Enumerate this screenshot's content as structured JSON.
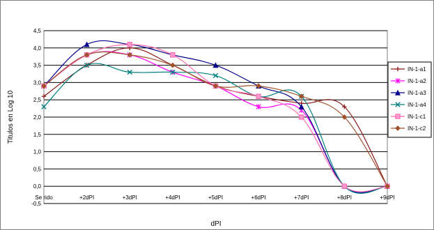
{
  "chart_data": {
    "type": "line",
    "xlabel": "dPI",
    "ylabel": "Titulos en Log 10",
    "categories": [
      "Se rido",
      "+2dPI",
      "+3dPI",
      "+4dPI",
      "+5dPI",
      "+6dPI",
      "+7dPI",
      "+8dPI",
      "+9dPI"
    ],
    "ylim": [
      -0.5,
      4.5
    ],
    "yticks": [
      "4,5",
      "4,0",
      "3,5",
      "3,0",
      "2,5",
      "2,0",
      "1,5",
      "1,0",
      "0,5",
      "0,0",
      "-0,5"
    ],
    "ytick_values": [
      4.5,
      4.0,
      3.5,
      3.0,
      2.5,
      2.0,
      1.5,
      1.0,
      0.5,
      0.0,
      -0.5
    ],
    "grid": true,
    "legend_position": "right",
    "series": [
      {
        "name": "IN-1-a1",
        "color": "#8b1a1a",
        "marker": "plus",
        "values": [
          2.6,
          3.5,
          4.0,
          3.5,
          2.9,
          2.6,
          2.4,
          2.3,
          0.0
        ]
      },
      {
        "name": "IN-1-a2",
        "color": "#ff00ff",
        "marker": "asterisk",
        "values": [
          2.9,
          3.8,
          3.8,
          3.3,
          2.9,
          2.3,
          2.2,
          0.0,
          0.0
        ]
      },
      {
        "name": "IN-1-a3",
        "color": "#00008b",
        "marker": "triangle",
        "values": [
          2.9,
          4.1,
          4.1,
          3.8,
          3.5,
          2.9,
          2.3,
          0.0,
          0.0
        ]
      },
      {
        "name": "IN-1-a4",
        "color": "#008080",
        "marker": "x",
        "values": [
          2.3,
          3.5,
          3.3,
          3.3,
          3.2,
          2.6,
          2.6,
          0.0,
          0.0
        ]
      },
      {
        "name": "IN-1-c1",
        "color": "#ff69b4",
        "marker": "square",
        "values": [
          2.9,
          3.8,
          4.1,
          3.8,
          2.9,
          2.6,
          2.0,
          0.0,
          0.0
        ]
      },
      {
        "name": "IN-1-c2",
        "color": "#a0522d",
        "marker": "diamond",
        "values": [
          2.9,
          3.8,
          3.8,
          3.5,
          2.9,
          2.9,
          2.6,
          2.0,
          0.0
        ]
      }
    ]
  }
}
